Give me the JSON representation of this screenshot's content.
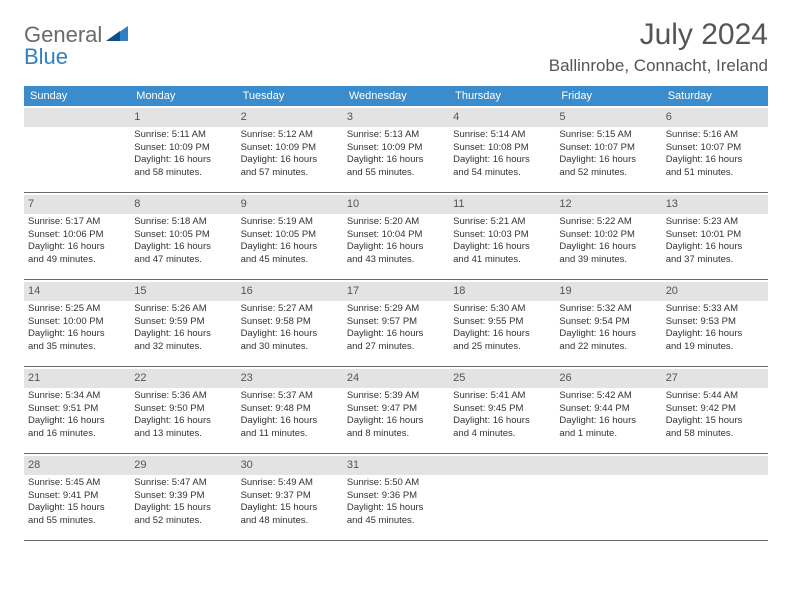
{
  "brand": {
    "text1": "General",
    "text2": "Blue"
  },
  "title": {
    "month": "July 2024",
    "location": "Ballinrobe, Connacht, Ireland"
  },
  "colors": {
    "header_bg": "#3b8ccc",
    "header_text": "#ffffff",
    "daybar_bg": "#e3e3e3",
    "rule": "#6a6a6a",
    "brand_gray": "#6a6a6a",
    "brand_blue": "#2f7fc1",
    "body_text": "#333333",
    "title_text": "#555555"
  },
  "day_labels": [
    "Sunday",
    "Monday",
    "Tuesday",
    "Wednesday",
    "Thursday",
    "Friday",
    "Saturday"
  ],
  "weeks": [
    [
      {
        "num": "",
        "lines": []
      },
      {
        "num": "1",
        "lines": [
          "Sunrise: 5:11 AM",
          "Sunset: 10:09 PM",
          "Daylight: 16 hours",
          "and 58 minutes."
        ]
      },
      {
        "num": "2",
        "lines": [
          "Sunrise: 5:12 AM",
          "Sunset: 10:09 PM",
          "Daylight: 16 hours",
          "and 57 minutes."
        ]
      },
      {
        "num": "3",
        "lines": [
          "Sunrise: 5:13 AM",
          "Sunset: 10:09 PM",
          "Daylight: 16 hours",
          "and 55 minutes."
        ]
      },
      {
        "num": "4",
        "lines": [
          "Sunrise: 5:14 AM",
          "Sunset: 10:08 PM",
          "Daylight: 16 hours",
          "and 54 minutes."
        ]
      },
      {
        "num": "5",
        "lines": [
          "Sunrise: 5:15 AM",
          "Sunset: 10:07 PM",
          "Daylight: 16 hours",
          "and 52 minutes."
        ]
      },
      {
        "num": "6",
        "lines": [
          "Sunrise: 5:16 AM",
          "Sunset: 10:07 PM",
          "Daylight: 16 hours",
          "and 51 minutes."
        ]
      }
    ],
    [
      {
        "num": "7",
        "lines": [
          "Sunrise: 5:17 AM",
          "Sunset: 10:06 PM",
          "Daylight: 16 hours",
          "and 49 minutes."
        ]
      },
      {
        "num": "8",
        "lines": [
          "Sunrise: 5:18 AM",
          "Sunset: 10:05 PM",
          "Daylight: 16 hours",
          "and 47 minutes."
        ]
      },
      {
        "num": "9",
        "lines": [
          "Sunrise: 5:19 AM",
          "Sunset: 10:05 PM",
          "Daylight: 16 hours",
          "and 45 minutes."
        ]
      },
      {
        "num": "10",
        "lines": [
          "Sunrise: 5:20 AM",
          "Sunset: 10:04 PM",
          "Daylight: 16 hours",
          "and 43 minutes."
        ]
      },
      {
        "num": "11",
        "lines": [
          "Sunrise: 5:21 AM",
          "Sunset: 10:03 PM",
          "Daylight: 16 hours",
          "and 41 minutes."
        ]
      },
      {
        "num": "12",
        "lines": [
          "Sunrise: 5:22 AM",
          "Sunset: 10:02 PM",
          "Daylight: 16 hours",
          "and 39 minutes."
        ]
      },
      {
        "num": "13",
        "lines": [
          "Sunrise: 5:23 AM",
          "Sunset: 10:01 PM",
          "Daylight: 16 hours",
          "and 37 minutes."
        ]
      }
    ],
    [
      {
        "num": "14",
        "lines": [
          "Sunrise: 5:25 AM",
          "Sunset: 10:00 PM",
          "Daylight: 16 hours",
          "and 35 minutes."
        ]
      },
      {
        "num": "15",
        "lines": [
          "Sunrise: 5:26 AM",
          "Sunset: 9:59 PM",
          "Daylight: 16 hours",
          "and 32 minutes."
        ]
      },
      {
        "num": "16",
        "lines": [
          "Sunrise: 5:27 AM",
          "Sunset: 9:58 PM",
          "Daylight: 16 hours",
          "and 30 minutes."
        ]
      },
      {
        "num": "17",
        "lines": [
          "Sunrise: 5:29 AM",
          "Sunset: 9:57 PM",
          "Daylight: 16 hours",
          "and 27 minutes."
        ]
      },
      {
        "num": "18",
        "lines": [
          "Sunrise: 5:30 AM",
          "Sunset: 9:55 PM",
          "Daylight: 16 hours",
          "and 25 minutes."
        ]
      },
      {
        "num": "19",
        "lines": [
          "Sunrise: 5:32 AM",
          "Sunset: 9:54 PM",
          "Daylight: 16 hours",
          "and 22 minutes."
        ]
      },
      {
        "num": "20",
        "lines": [
          "Sunrise: 5:33 AM",
          "Sunset: 9:53 PM",
          "Daylight: 16 hours",
          "and 19 minutes."
        ]
      }
    ],
    [
      {
        "num": "21",
        "lines": [
          "Sunrise: 5:34 AM",
          "Sunset: 9:51 PM",
          "Daylight: 16 hours",
          "and 16 minutes."
        ]
      },
      {
        "num": "22",
        "lines": [
          "Sunrise: 5:36 AM",
          "Sunset: 9:50 PM",
          "Daylight: 16 hours",
          "and 13 minutes."
        ]
      },
      {
        "num": "23",
        "lines": [
          "Sunrise: 5:37 AM",
          "Sunset: 9:48 PM",
          "Daylight: 16 hours",
          "and 11 minutes."
        ]
      },
      {
        "num": "24",
        "lines": [
          "Sunrise: 5:39 AM",
          "Sunset: 9:47 PM",
          "Daylight: 16 hours",
          "and 8 minutes."
        ]
      },
      {
        "num": "25",
        "lines": [
          "Sunrise: 5:41 AM",
          "Sunset: 9:45 PM",
          "Daylight: 16 hours",
          "and 4 minutes."
        ]
      },
      {
        "num": "26",
        "lines": [
          "Sunrise: 5:42 AM",
          "Sunset: 9:44 PM",
          "Daylight: 16 hours",
          "and 1 minute."
        ]
      },
      {
        "num": "27",
        "lines": [
          "Sunrise: 5:44 AM",
          "Sunset: 9:42 PM",
          "Daylight: 15 hours",
          "and 58 minutes."
        ]
      }
    ],
    [
      {
        "num": "28",
        "lines": [
          "Sunrise: 5:45 AM",
          "Sunset: 9:41 PM",
          "Daylight: 15 hours",
          "and 55 minutes."
        ]
      },
      {
        "num": "29",
        "lines": [
          "Sunrise: 5:47 AM",
          "Sunset: 9:39 PM",
          "Daylight: 15 hours",
          "and 52 minutes."
        ]
      },
      {
        "num": "30",
        "lines": [
          "Sunrise: 5:49 AM",
          "Sunset: 9:37 PM",
          "Daylight: 15 hours",
          "and 48 minutes."
        ]
      },
      {
        "num": "31",
        "lines": [
          "Sunrise: 5:50 AM",
          "Sunset: 9:36 PM",
          "Daylight: 15 hours",
          "and 45 minutes."
        ]
      },
      {
        "num": "",
        "lines": []
      },
      {
        "num": "",
        "lines": []
      },
      {
        "num": "",
        "lines": []
      }
    ]
  ]
}
